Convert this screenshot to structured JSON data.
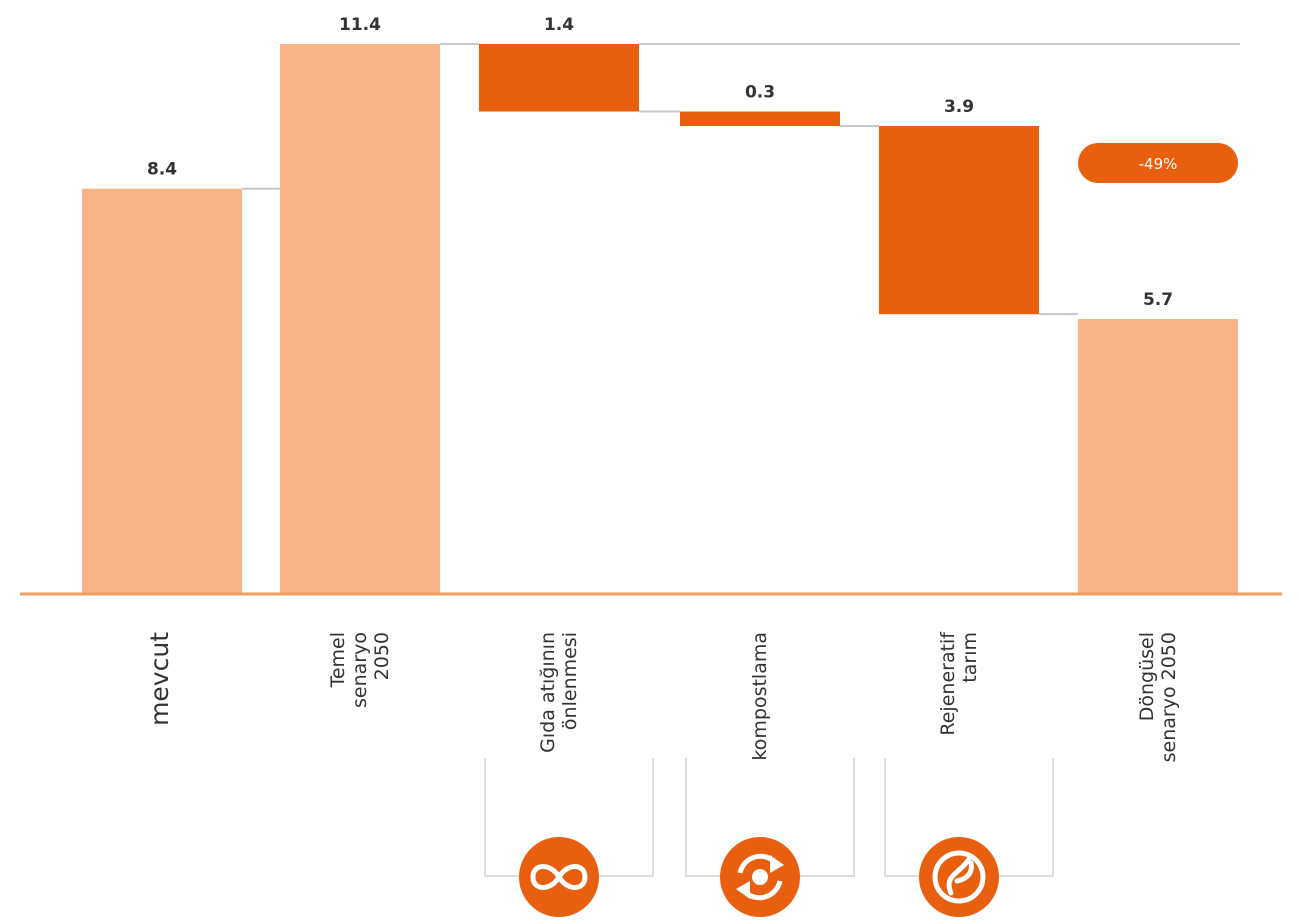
{
  "chart_data": {
    "type": "bar",
    "subtype": "waterfall",
    "categories": [
      "mevcut",
      "Temel senaryo 2050",
      "Gıda atığının önlenmesi",
      "kompostlama",
      "Rejeneratif tarım",
      "Döngüsel senaryo 2050"
    ],
    "category_lines": [
      [
        "mevcut"
      ],
      [
        "Temel",
        "senaryo",
        "2050"
      ],
      [
        "Gıda atığının",
        "önlenmesi"
      ],
      [
        "kompostlama"
      ],
      [
        "Rejeneratif",
        "tarım"
      ],
      [
        "Döngüsel",
        "senaryo 2050"
      ]
    ],
    "bars": [
      {
        "kind": "total",
        "value": 8.4,
        "label": "8.4"
      },
      {
        "kind": "total",
        "value": 11.4,
        "label": "11.4"
      },
      {
        "kind": "decrease",
        "value": 1.4,
        "label": "1.4",
        "icon": "infinity-icon"
      },
      {
        "kind": "decrease",
        "value": 0.3,
        "label": "0.3",
        "icon": "cycle-icon"
      },
      {
        "kind": "decrease",
        "value": 3.9,
        "label": "3.9",
        "icon": "leaf-icon"
      },
      {
        "kind": "total",
        "value": 5.7,
        "label": "5.7"
      }
    ],
    "badge": "-49%",
    "ylim": [
      0,
      11.4
    ],
    "grid": false,
    "colors": {
      "total": "#f8b486",
      "decrease": "#e8600f",
      "baseline": "#f2a060",
      "connector": "#c4c8cc",
      "bracket": "#dddddd"
    }
  }
}
